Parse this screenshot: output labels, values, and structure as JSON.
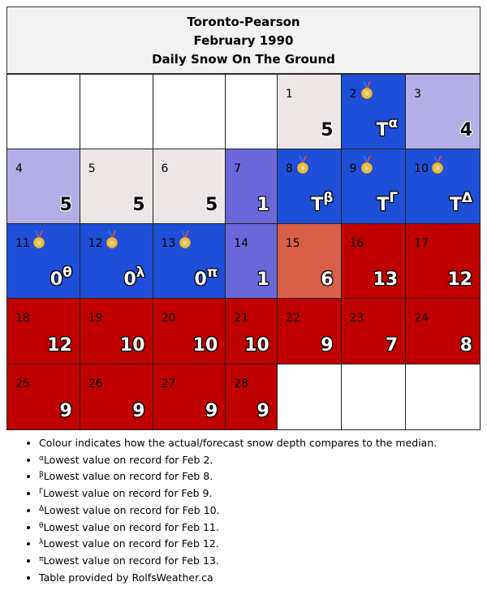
{
  "header": {
    "station": "Toronto-Pearson",
    "period": "February 1990",
    "subtitle": "Daily Snow On The Ground"
  },
  "colors": {
    "median": "#ece6e6",
    "slightly_below": "#b3aee6",
    "below": "#6a68d9",
    "record_low": "#1f4fd8",
    "above": "#d95f48",
    "far_above": "#c00000",
    "empty": "#ffffff"
  },
  "weeks": [
    [
      {
        "blank": true
      },
      {
        "blank": true
      },
      {
        "blank": true
      },
      {
        "blank": true
      },
      {
        "day": "1",
        "value": "5",
        "mark": "",
        "color": "#ece6e6",
        "medal": false
      },
      {
        "day": "2",
        "value": "T",
        "mark": "α",
        "color": "#1f4fd8",
        "medal": true
      },
      {
        "day": "3",
        "value": "4",
        "mark": "",
        "color": "#b3aee6",
        "medal": false
      }
    ],
    [
      {
        "day": "4",
        "value": "5",
        "mark": "",
        "color": "#b3aee6",
        "medal": false
      },
      {
        "day": "5",
        "value": "5",
        "mark": "",
        "color": "#ece6e6",
        "medal": false
      },
      {
        "day": "6",
        "value": "5",
        "mark": "",
        "color": "#ece6e6",
        "medal": false
      },
      {
        "day": "7",
        "value": "1",
        "mark": "",
        "color": "#6a68d9",
        "medal": false
      },
      {
        "day": "8",
        "value": "T",
        "mark": "β",
        "color": "#1f4fd8",
        "medal": true
      },
      {
        "day": "9",
        "value": "T",
        "mark": "Γ",
        "color": "#1f4fd8",
        "medal": true
      },
      {
        "day": "10",
        "value": "T",
        "mark": "Δ",
        "color": "#1f4fd8",
        "medal": true
      }
    ],
    [
      {
        "day": "11",
        "value": "0",
        "mark": "θ",
        "color": "#1f4fd8",
        "medal": true
      },
      {
        "day": "12",
        "value": "0",
        "mark": "λ",
        "color": "#1f4fd8",
        "medal": true
      },
      {
        "day": "13",
        "value": "0",
        "mark": "π",
        "color": "#1f4fd8",
        "medal": true
      },
      {
        "day": "14",
        "value": "1",
        "mark": "",
        "color": "#6a68d9",
        "medal": false
      },
      {
        "day": "15",
        "value": "6",
        "mark": "",
        "color": "#d95f48",
        "medal": false
      },
      {
        "day": "16",
        "value": "13",
        "mark": "",
        "color": "#c00000",
        "medal": false
      },
      {
        "day": "17",
        "value": "12",
        "mark": "",
        "color": "#c00000",
        "medal": false
      }
    ],
    [
      {
        "day": "18",
        "value": "12",
        "mark": "",
        "color": "#c00000",
        "medal": false
      },
      {
        "day": "19",
        "value": "10",
        "mark": "",
        "color": "#c00000",
        "medal": false
      },
      {
        "day": "20",
        "value": "10",
        "mark": "",
        "color": "#c00000",
        "medal": false
      },
      {
        "day": "21",
        "value": "10",
        "mark": "",
        "color": "#c00000",
        "medal": false
      },
      {
        "day": "22",
        "value": "9",
        "mark": "",
        "color": "#c00000",
        "medal": false
      },
      {
        "day": "23",
        "value": "7",
        "mark": "",
        "color": "#c00000",
        "medal": false
      },
      {
        "day": "24",
        "value": "8",
        "mark": "",
        "color": "#c00000",
        "medal": false
      }
    ],
    [
      {
        "day": "25",
        "value": "9",
        "mark": "",
        "color": "#c00000",
        "medal": false
      },
      {
        "day": "26",
        "value": "9",
        "mark": "",
        "color": "#c00000",
        "medal": false
      },
      {
        "day": "27",
        "value": "9",
        "mark": "",
        "color": "#c00000",
        "medal": false
      },
      {
        "day": "28",
        "value": "9",
        "mark": "",
        "color": "#c00000",
        "medal": false
      },
      {
        "blank": true
      },
      {
        "blank": true
      },
      {
        "blank": true
      }
    ]
  ],
  "notes": [
    {
      "mark": "",
      "text": "Colour indicates how the actual/forecast snow depth compares to the median."
    },
    {
      "mark": "α",
      "text": "Lowest value on record for Feb 2."
    },
    {
      "mark": "β",
      "text": "Lowest value on record for Feb 8."
    },
    {
      "mark": "Γ",
      "text": "Lowest value on record for Feb 9."
    },
    {
      "mark": "Δ",
      "text": "Lowest value on record for Feb 10."
    },
    {
      "mark": "θ",
      "text": "Lowest value on record for Feb 11."
    },
    {
      "mark": "λ",
      "text": "Lowest value on record for Feb 12."
    },
    {
      "mark": "π",
      "text": "Lowest value on record for Feb 13."
    },
    {
      "mark": "",
      "text": "Table provided by RolfsWeather.ca"
    }
  ],
  "icons": {
    "medal": "medal-icon"
  }
}
